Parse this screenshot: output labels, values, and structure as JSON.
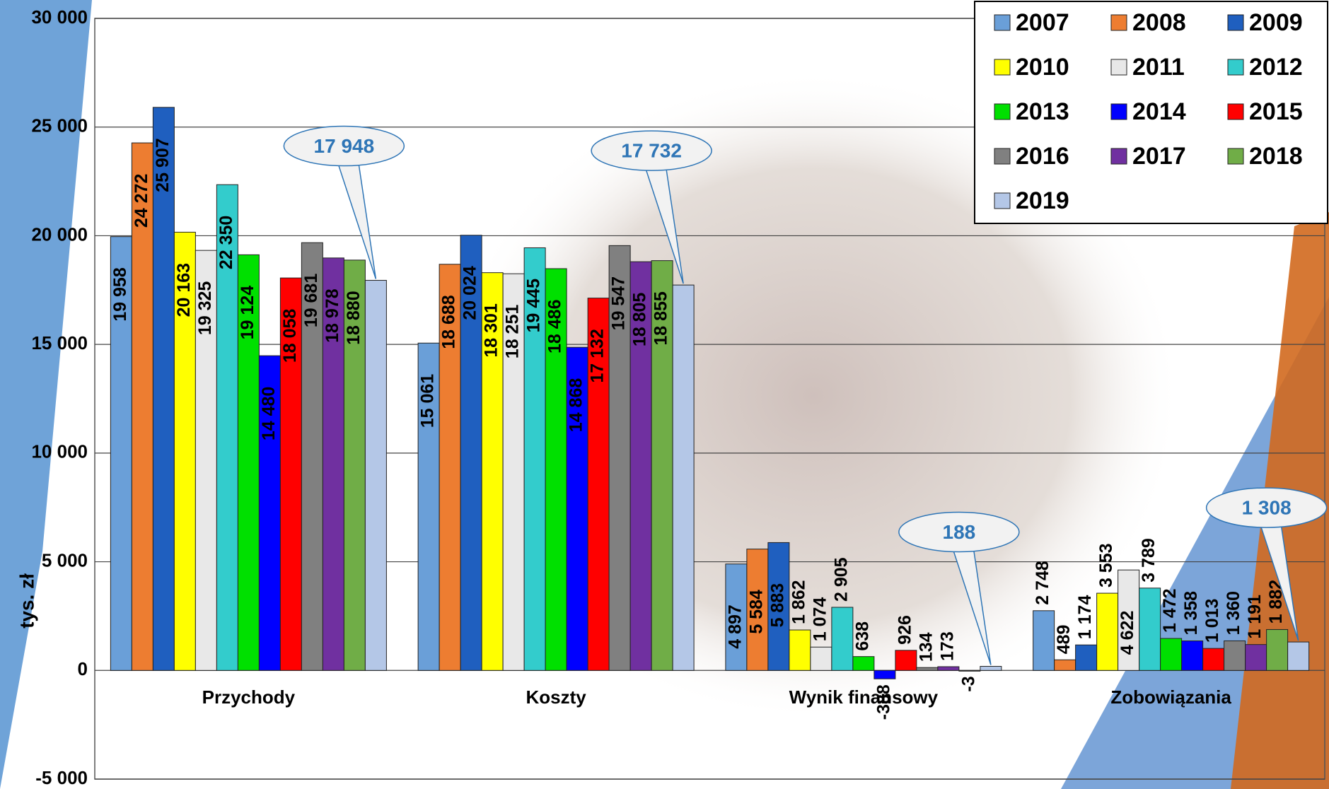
{
  "chart_data": {
    "type": "bar",
    "y_label": "tys. zł",
    "categories": [
      "Przychody",
      "Koszty",
      "Wynik finansowy",
      "Zobowiązania"
    ],
    "ylim": [
      -5000,
      30000
    ],
    "yticks": [
      {
        "value": -5000,
        "label": "-5 000"
      },
      0,
      {
        "value": 5000,
        "label": "5 000"
      },
      {
        "value": 10000,
        "label": "10 000"
      },
      {
        "value": 15000,
        "label": "15 000"
      },
      {
        "value": 20000,
        "label": "20 000"
      },
      {
        "value": 25000,
        "label": "25 000"
      },
      {
        "value": 30000,
        "label": "30 000"
      }
    ],
    "grid": true,
    "legend": "top-right",
    "series": [
      {
        "name": "2007",
        "color": "#6a9fd8",
        "values": [
          19958,
          15061,
          4897,
          2748
        ],
        "value_labels": [
          "19 958",
          "15 061",
          "4 897",
          "2 748"
        ]
      },
      {
        "name": "2008",
        "color": "#ed7d31",
        "values": [
          24272,
          18688,
          5584,
          489
        ],
        "value_labels": [
          "24 272",
          "18 688",
          "5 584",
          "489"
        ]
      },
      {
        "name": "2009",
        "color": "#1f5fbf",
        "values": [
          25907,
          20024,
          5883,
          1174
        ],
        "value_labels": [
          "25 907",
          "20 024",
          "5 883",
          "1 174"
        ]
      },
      {
        "name": "2010",
        "color": "#ffff00",
        "values": [
          20163,
          18301,
          1862,
          3553
        ],
        "value_labels": [
          "20 163",
          "18 301",
          "1 862",
          "3 553"
        ]
      },
      {
        "name": "2011",
        "color": "#e8e8e8",
        "values": [
          19325,
          18251,
          1074,
          4622
        ],
        "value_labels": [
          "19 325",
          "18 251",
          "1 074",
          "4 622"
        ]
      },
      {
        "name": "2012",
        "color": "#33cccc",
        "values": [
          22350,
          19445,
          2905,
          3789
        ],
        "value_labels": [
          "22 350",
          "19 445",
          "2 905",
          "3 789"
        ]
      },
      {
        "name": "2013",
        "color": "#00e000",
        "values": [
          19124,
          18486,
          638,
          1472
        ],
        "value_labels": [
          "19 124",
          "18 486",
          "638",
          "1 472"
        ]
      },
      {
        "name": "2014",
        "color": "#0000ff",
        "values": [
          14480,
          14868,
          -388,
          1358
        ],
        "value_labels": [
          "14 480",
          "14 868",
          "-388",
          "1 358"
        ]
      },
      {
        "name": "2015",
        "color": "#ff0000",
        "values": [
          18058,
          17132,
          926,
          1013
        ],
        "value_labels": [
          "18 058",
          "17 132",
          "926",
          "1 013"
        ]
      },
      {
        "name": "2016",
        "color": "#808080",
        "values": [
          19681,
          19547,
          134,
          1360
        ],
        "value_labels": [
          "19 681",
          "19 547",
          "134",
          "1 360"
        ]
      },
      {
        "name": "2017",
        "color": "#7030a0",
        "values": [
          18978,
          18805,
          173,
          1191
        ],
        "value_labels": [
          "18 978",
          "18 805",
          "173",
          "1 191"
        ]
      },
      {
        "name": "2018",
        "color": "#70ad47",
        "values": [
          18880,
          18855,
          -3,
          1882
        ],
        "value_labels": [
          "18 880",
          "18 855",
          "-3",
          "1 882"
        ]
      },
      {
        "name": "2019",
        "color": "#b4c7e7",
        "values": [
          17948,
          17732,
          188,
          1308
        ],
        "value_labels": [
          "17 948",
          "17 732",
          "188",
          "1 308"
        ]
      }
    ]
  }
}
